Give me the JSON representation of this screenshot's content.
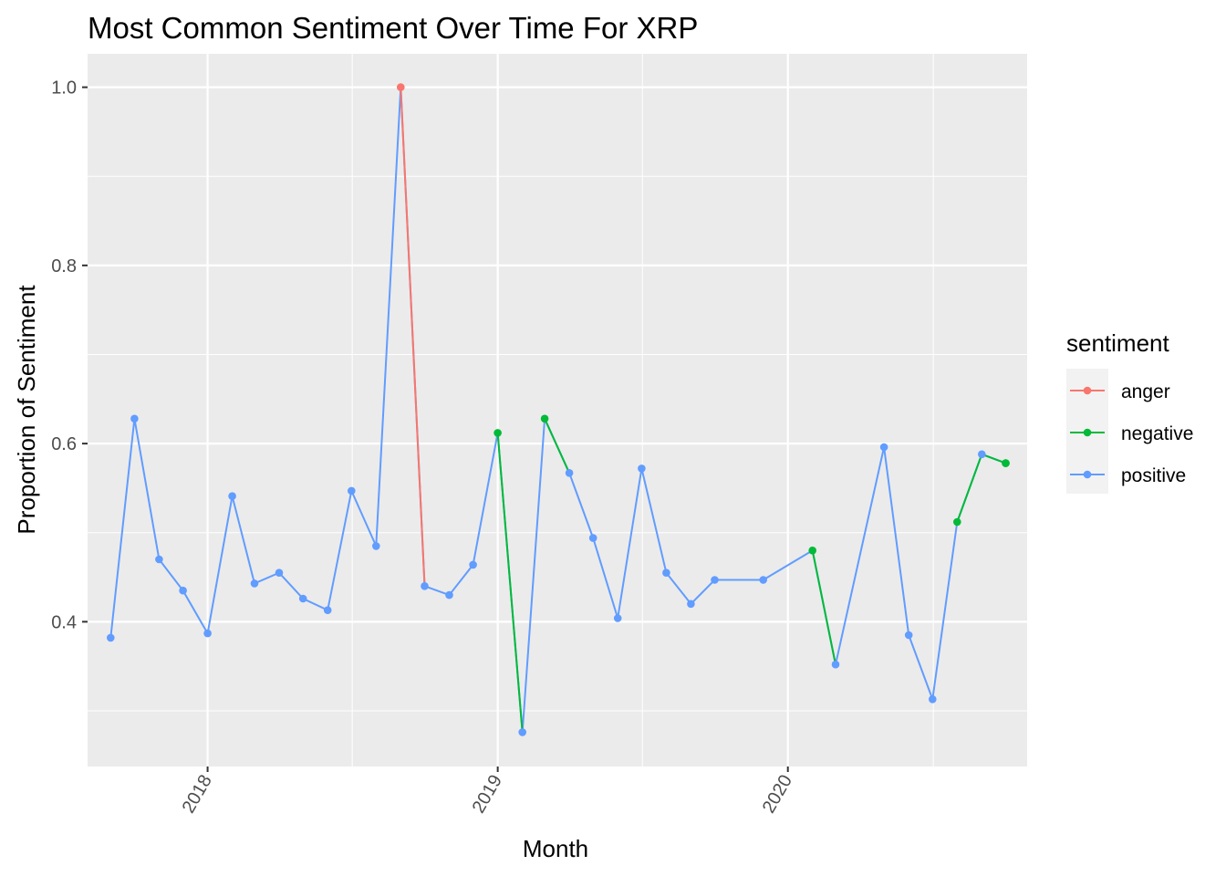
{
  "chart_data": {
    "type": "line",
    "title": "Most Common Sentiment Over Time For XRP",
    "xlabel": "Month",
    "ylabel": "Proportion of Sentiment",
    "xlim": [
      "2017-08-03",
      "2020-10-28"
    ],
    "ylim": [
      0.2375,
      1.0375
    ],
    "x_ticks": [
      "2018-01-01",
      "2019-01-01",
      "2020-01-01"
    ],
    "x_tick_labels": [
      "2018",
      "2019",
      "2020"
    ],
    "y_ticks": [
      0.4,
      0.6,
      0.8,
      1.0
    ],
    "y_tick_labels": [
      "0.4",
      "0.6",
      "0.8",
      "1.0"
    ],
    "grid": true,
    "legend_position": "right",
    "legend_title": "sentiment",
    "series_colors": {
      "anger": "#F8766D",
      "negative": "#00BA38",
      "positive": "#619CFF"
    },
    "series": [
      {
        "name": "anger",
        "color": "#F8766D",
        "points": [
          [
            "2018-09-01",
            1.0
          ],
          [
            "2018-10-01",
            0.44
          ]
        ]
      },
      {
        "name": "negative",
        "color": "#00BA38",
        "points": [
          [
            "2019-01-01",
            0.612
          ],
          [
            "2019-02-01",
            0.276
          ],
          [
            "2019-03-01",
            0.628
          ],
          [
            "2019-04-01",
            0.567
          ],
          [
            "2020-02-01",
            0.48
          ],
          [
            "2020-03-01",
            0.352
          ],
          [
            "2020-08-01",
            0.512
          ],
          [
            "2020-09-01",
            0.588
          ],
          [
            "2020-10-01",
            0.578
          ]
        ]
      },
      {
        "name": "positive",
        "color": "#619CFF",
        "points": [
          [
            "2017-09-01",
            0.382
          ],
          [
            "2017-10-01",
            0.628
          ],
          [
            "2017-11-01",
            0.47
          ],
          [
            "2017-12-01",
            0.435
          ],
          [
            "2018-01-01",
            0.387
          ],
          [
            "2018-02-01",
            0.541
          ],
          [
            "2018-03-01",
            0.443
          ],
          [
            "2018-04-01",
            0.455
          ],
          [
            "2018-05-01",
            0.426
          ],
          [
            "2018-06-01",
            0.413
          ],
          [
            "2018-07-01",
            0.547
          ],
          [
            "2018-08-01",
            0.485
          ],
          [
            "2018-09-01",
            1.0
          ],
          [
            "2018-10-01",
            0.44
          ],
          [
            "2018-11-01",
            0.43
          ],
          [
            "2018-12-01",
            0.464
          ],
          [
            "2019-01-01",
            0.612
          ],
          [
            "2019-02-01",
            0.276
          ],
          [
            "2019-03-01",
            0.628
          ],
          [
            "2019-04-01",
            0.567
          ],
          [
            "2019-05-01",
            0.494
          ],
          [
            "2019-06-01",
            0.404
          ],
          [
            "2019-07-01",
            0.572
          ],
          [
            "2019-08-01",
            0.455
          ],
          [
            "2019-09-01",
            0.42
          ],
          [
            "2019-10-01",
            0.447
          ],
          [
            "2019-12-01",
            0.447
          ],
          [
            "2020-02-01",
            0.48
          ],
          [
            "2020-03-01",
            0.352
          ],
          [
            "2020-05-01",
            0.596
          ],
          [
            "2020-06-01",
            0.385
          ],
          [
            "2020-07-01",
            0.313
          ],
          [
            "2020-08-01",
            0.512
          ],
          [
            "2020-09-01",
            0.588
          ],
          [
            "2020-10-01",
            0.578
          ]
        ]
      }
    ]
  }
}
